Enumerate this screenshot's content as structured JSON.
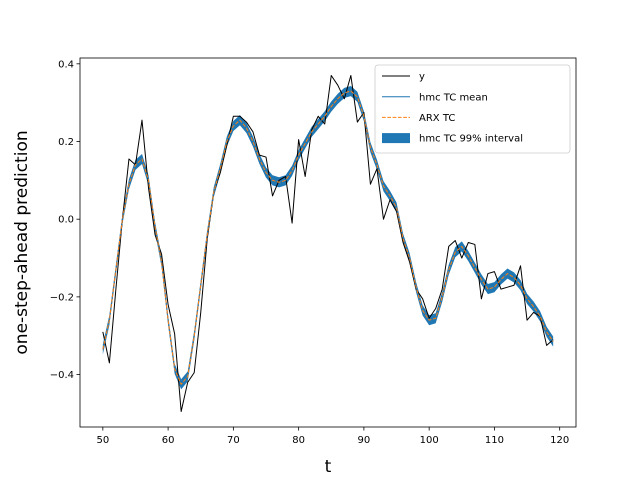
{
  "chart_data": {
    "type": "line",
    "xlabel": "t",
    "ylabel": "one-step-ahead prediction",
    "xlim": [
      46.5,
      122.5
    ],
    "ylim": [
      -0.535,
      0.415
    ],
    "xticks": [
      50,
      60,
      70,
      80,
      90,
      100,
      110,
      120
    ],
    "yticks": [
      -0.4,
      -0.2,
      0.0,
      0.2,
      0.4
    ],
    "ytick_labels": [
      "−0.4",
      "−0.2",
      "0.0",
      "0.2",
      "0.4"
    ],
    "grid": false,
    "legend_position": "top-right",
    "x": [
      50,
      51,
      52,
      53,
      54,
      55,
      56,
      57,
      58,
      59,
      60,
      61,
      62,
      63,
      64,
      65,
      66,
      67,
      68,
      69,
      70,
      71,
      72,
      73,
      74,
      75,
      76,
      77,
      78,
      79,
      80,
      81,
      82,
      83,
      84,
      85,
      86,
      87,
      88,
      89,
      90,
      91,
      92,
      93,
      94,
      95,
      96,
      97,
      98,
      99,
      100,
      101,
      102,
      103,
      104,
      105,
      106,
      107,
      108,
      109,
      110,
      111,
      112,
      113,
      114,
      115,
      116,
      117,
      118,
      119
    ],
    "series": [
      {
        "name": "y",
        "style": "line",
        "color": "#000000",
        "values": [
          -0.29,
          -0.37,
          -0.18,
          0.0,
          0.155,
          0.14,
          0.255,
          0.08,
          -0.04,
          -0.09,
          -0.22,
          -0.295,
          -0.495,
          -0.42,
          -0.395,
          -0.24,
          -0.05,
          0.07,
          0.12,
          0.19,
          0.265,
          0.265,
          0.25,
          0.225,
          0.165,
          0.16,
          0.06,
          0.1,
          0.11,
          -0.01,
          0.205,
          0.11,
          0.23,
          0.265,
          0.245,
          0.37,
          0.345,
          0.31,
          0.37,
          0.25,
          0.275,
          0.09,
          0.13,
          0.0,
          0.05,
          0.02,
          -0.06,
          -0.11,
          -0.18,
          -0.205,
          -0.255,
          -0.23,
          -0.18,
          -0.07,
          -0.055,
          -0.1,
          -0.06,
          -0.065,
          -0.205,
          -0.14,
          -0.135,
          -0.18,
          -0.175,
          -0.17,
          -0.12,
          -0.26,
          -0.24,
          -0.25,
          -0.325,
          -0.31
        ]
      },
      {
        "name": "hmc TC mean",
        "style": "line",
        "color": "#1f77b4",
        "values": [
          -0.335,
          -0.26,
          -0.13,
          0.0,
          0.09,
          0.14,
          0.155,
          0.1,
          -0.02,
          -0.11,
          -0.26,
          -0.385,
          -0.425,
          -0.405,
          -0.3,
          -0.17,
          -0.04,
          0.07,
          0.13,
          0.2,
          0.24,
          0.255,
          0.235,
          0.2,
          0.155,
          0.12,
          0.1,
          0.095,
          0.1,
          0.125,
          0.165,
          0.195,
          0.225,
          0.245,
          0.265,
          0.29,
          0.31,
          0.325,
          0.33,
          0.315,
          0.265,
          0.185,
          0.14,
          0.085,
          0.06,
          0.03,
          -0.05,
          -0.1,
          -0.175,
          -0.235,
          -0.26,
          -0.255,
          -0.2,
          -0.13,
          -0.085,
          -0.07,
          -0.095,
          -0.125,
          -0.155,
          -0.18,
          -0.175,
          -0.155,
          -0.14,
          -0.15,
          -0.17,
          -0.205,
          -0.225,
          -0.25,
          -0.29,
          -0.315
        ]
      },
      {
        "name": "ARX TC",
        "style": "dashed",
        "color": "#ff7f0e",
        "values": [
          -0.335,
          -0.26,
          -0.13,
          0.0,
          0.09,
          0.14,
          0.155,
          0.1,
          -0.02,
          -0.11,
          -0.26,
          -0.385,
          -0.425,
          -0.405,
          -0.3,
          -0.17,
          -0.04,
          0.07,
          0.13,
          0.2,
          0.24,
          0.255,
          0.235,
          0.2,
          0.155,
          0.12,
          0.1,
          0.095,
          0.1,
          0.125,
          0.165,
          0.195,
          0.225,
          0.245,
          0.265,
          0.29,
          0.31,
          0.325,
          0.33,
          0.315,
          0.265,
          0.185,
          0.14,
          0.085,
          0.06,
          0.03,
          -0.05,
          -0.1,
          -0.175,
          -0.235,
          -0.26,
          -0.255,
          -0.2,
          -0.13,
          -0.085,
          -0.07,
          -0.095,
          -0.125,
          -0.155,
          -0.18,
          -0.175,
          -0.155,
          -0.14,
          -0.15,
          -0.17,
          -0.205,
          -0.225,
          -0.25,
          -0.29,
          -0.315
        ]
      },
      {
        "name": "hmc TC 99% interval",
        "style": "band",
        "color": "#1f77b4",
        "half_width": 0.013
      }
    ]
  }
}
